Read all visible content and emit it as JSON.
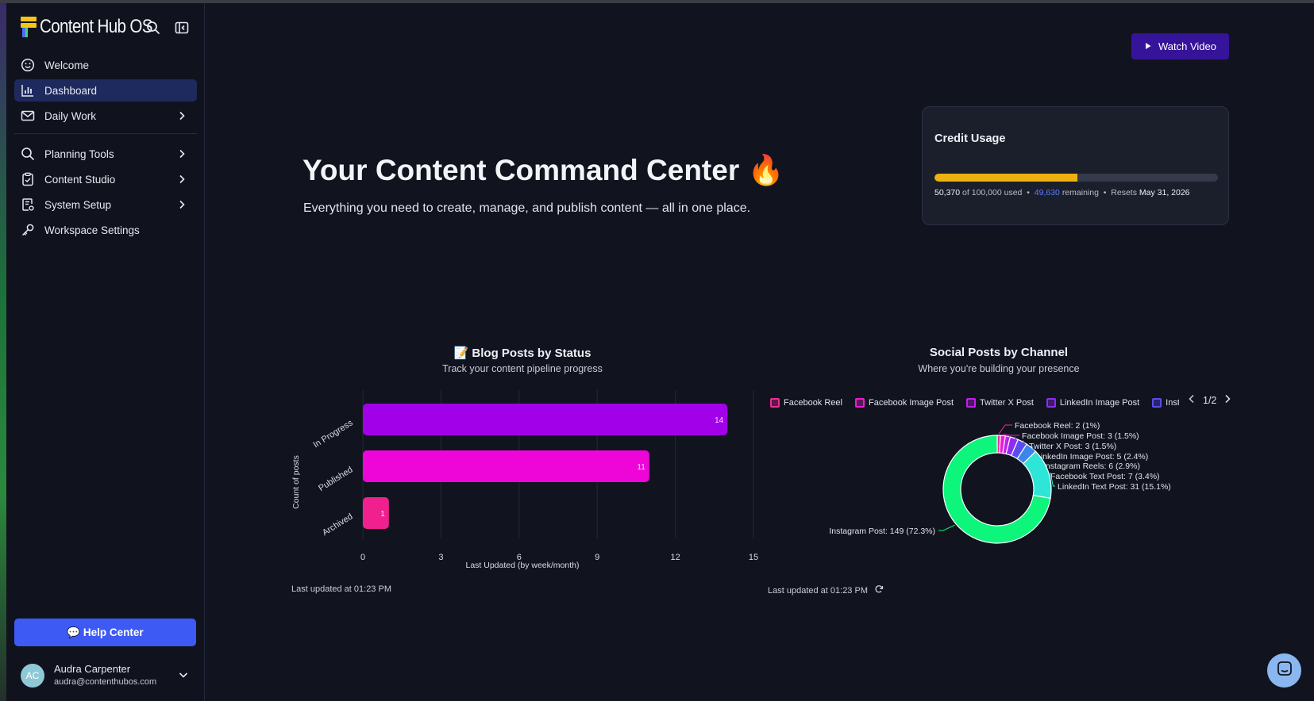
{
  "app": {
    "name": "Content Hub OS"
  },
  "sidebar": {
    "items": [
      {
        "label": "Welcome",
        "icon": "smiley-icon"
      },
      {
        "label": "Dashboard",
        "icon": "bar-chart-icon"
      },
      {
        "label": "Daily Work",
        "icon": "mail-icon"
      },
      {
        "label": "Planning Tools",
        "icon": "search-icon"
      },
      {
        "label": "Content Studio",
        "icon": "clipboard-check-icon"
      },
      {
        "label": "System Setup",
        "icon": "document-gear-icon"
      },
      {
        "label": "Workspace Settings",
        "icon": "key-icon"
      }
    ],
    "help_label": "💬 Help Center",
    "user": {
      "initials": "AC",
      "name": "Audra Carpenter",
      "email": "audra@contenthubos.com"
    }
  },
  "header": {
    "watch_label": "Watch Video"
  },
  "hero": {
    "title": "Your Content Command Center 🔥",
    "subtitle": "Everything you need to create, manage, and publish content — all in one place."
  },
  "credit": {
    "title": "Credit Usage",
    "used": "50,370",
    "of_label": "of",
    "total": "100,000",
    "used_label": "used",
    "remaining": "49,630",
    "remaining_label": "remaining",
    "resets_label": "Resets",
    "reset_date": "May 31, 2026",
    "fraction_used": 0.5037,
    "colors": {
      "fill": "#efb012",
      "track": "#343a4b",
      "remaining": "#5b7cff"
    }
  },
  "blog_chart": {
    "title": "📝 Blog Posts by Status",
    "subtitle": "Track your content pipeline progress",
    "updated": "Last updated at 01:23 PM"
  },
  "social_chart": {
    "title": "Social Posts by Channel",
    "subtitle": "Where you're building your presence",
    "updated": "Last updated at 01:23 PM",
    "pager": "1/2",
    "legend": [
      {
        "label": "Facebook Reel",
        "color": "#f02a9a"
      },
      {
        "label": "Facebook Image Post",
        "color": "#f01ad0"
      },
      {
        "label": "Twitter X Post",
        "color": "#c21ef0"
      },
      {
        "label": "LinkedIn Image Post",
        "color": "#8f2cf2"
      },
      {
        "label": "Insta",
        "color": "#5a4cf2"
      }
    ]
  },
  "chart_data": [
    {
      "type": "bar",
      "orientation": "horizontal",
      "categories": [
        "In Progress",
        "Published",
        "Archived"
      ],
      "values": [
        14,
        11,
        1
      ],
      "xlabel": "Last Updated (by week/month)",
      "ylabel": "Count of posts",
      "xlim": [
        0,
        15
      ],
      "xticks": [
        0,
        3,
        6,
        9,
        12,
        15
      ],
      "colors": [
        "#a100e8",
        "#ee06d8",
        "#f0208f"
      ],
      "grid": true
    },
    {
      "type": "pie",
      "donut": true,
      "slices": [
        {
          "label": "Facebook Reel: 2 (1%)",
          "value": 2,
          "color": "#f02a9a"
        },
        {
          "label": "Facebook Image Post: 3 (1.5%)",
          "value": 3,
          "color": "#f01ad0"
        },
        {
          "label": "Twitter X Post: 3 (1.5%)",
          "value": 3,
          "color": "#c21ef0"
        },
        {
          "label": "LinkedIn Image Post: 5 (2.4%)",
          "value": 5,
          "color": "#8f2cf2"
        },
        {
          "label": "Instagram Reels: 6 (2.9%)",
          "value": 6,
          "color": "#5a4cf2"
        },
        {
          "label": "Facebook Text Post: 7 (3.4%)",
          "value": 7,
          "color": "#3a86ea"
        },
        {
          "label": "LinkedIn Text Post: 31 (15.1%)",
          "value": 31,
          "color": "#2ee6d8"
        },
        {
          "label": "Instagram Post: 149 (72.3%)",
          "value": 149,
          "color": "#0ef57c"
        }
      ]
    }
  ]
}
